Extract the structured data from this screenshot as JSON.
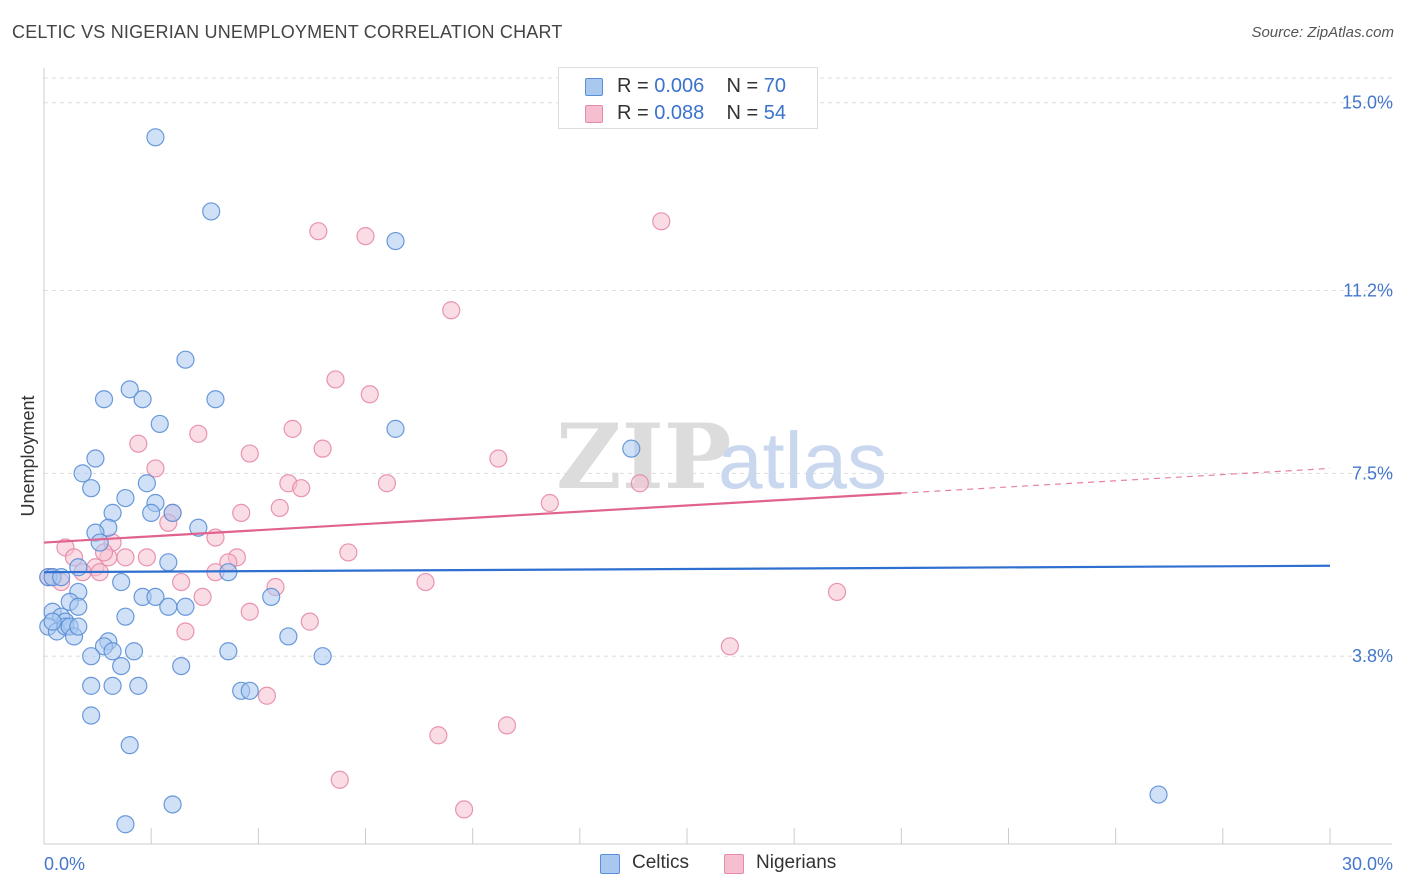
{
  "header": {
    "title": "CELTIC VS NIGERIAN UNEMPLOYMENT CORRELATION CHART",
    "source": "Source: ZipAtlas.com"
  },
  "legend": {
    "r_label": "R =",
    "n_label": "N =",
    "rows": [
      {
        "r": "0.006",
        "n": "70"
      },
      {
        "r": "0.088",
        "n": "54"
      }
    ]
  },
  "watermark": {
    "part1": "ZIP",
    "part2": "atlas"
  },
  "colors": {
    "celtics_fill": "#a9c8f0",
    "celtics_stroke": "#5b8fd6",
    "celtics_line": "#2f6fd0",
    "nigerians_fill": "#f6bfd0",
    "nigerians_stroke": "#e58aa8",
    "nigerians_line": "#e0628e",
    "tick_label": "#4477cc",
    "grid": "#dddddd"
  },
  "chart_data": {
    "type": "scatter",
    "title": "CELTIC VS NIGERIAN UNEMPLOYMENT CORRELATION CHART",
    "xlabel": "",
    "ylabel": "Unemployment",
    "xlim": [
      0,
      30
    ],
    "ylim": [
      0,
      15.5
    ],
    "x_tick_labels": [
      "0.0%",
      "30.0%"
    ],
    "y_ticks": [
      3.8,
      7.5,
      11.2,
      15.0
    ],
    "y_tick_labels": [
      "3.8%",
      "7.5%",
      "11.2%",
      "15.0%"
    ],
    "grid": true,
    "legend_position": "bottom",
    "series": [
      {
        "name": "Celtics",
        "r": 0.006,
        "n": 70,
        "trend": {
          "x0": 0,
          "y0": 5.5,
          "x1": 30,
          "y1": 5.63,
          "solid_until": 30
        },
        "points": [
          [
            2.6,
            14.3
          ],
          [
            3.9,
            12.8
          ],
          [
            8.2,
            12.2
          ],
          [
            3.3,
            9.8
          ],
          [
            2.0,
            9.2
          ],
          [
            1.4,
            9.0
          ],
          [
            2.3,
            9.0
          ],
          [
            4.0,
            9.0
          ],
          [
            2.7,
            8.5
          ],
          [
            8.2,
            8.4
          ],
          [
            13.7,
            8.0
          ],
          [
            1.2,
            7.8
          ],
          [
            0.9,
            7.5
          ],
          [
            2.4,
            7.3
          ],
          [
            1.1,
            7.2
          ],
          [
            1.9,
            7.0
          ],
          [
            2.6,
            6.9
          ],
          [
            1.6,
            6.7
          ],
          [
            2.5,
            6.7
          ],
          [
            3.0,
            6.7
          ],
          [
            3.6,
            6.4
          ],
          [
            1.5,
            6.4
          ],
          [
            1.2,
            6.3
          ],
          [
            1.3,
            6.1
          ],
          [
            0.1,
            5.4
          ],
          [
            0.2,
            5.4
          ],
          [
            0.8,
            5.6
          ],
          [
            1.8,
            5.3
          ],
          [
            2.9,
            5.7
          ],
          [
            4.3,
            5.5
          ],
          [
            0.8,
            5.1
          ],
          [
            2.3,
            5.0
          ],
          [
            2.6,
            5.0
          ],
          [
            5.3,
            5.0
          ],
          [
            0.6,
            4.9
          ],
          [
            0.8,
            4.8
          ],
          [
            2.9,
            4.8
          ],
          [
            3.3,
            4.8
          ],
          [
            0.2,
            4.7
          ],
          [
            1.9,
            4.6
          ],
          [
            0.4,
            4.6
          ],
          [
            0.5,
            4.5
          ],
          [
            0.1,
            4.4
          ],
          [
            0.3,
            4.3
          ],
          [
            0.5,
            4.4
          ],
          [
            0.6,
            4.4
          ],
          [
            0.7,
            4.2
          ],
          [
            5.7,
            4.2
          ],
          [
            1.5,
            4.1
          ],
          [
            1.4,
            4.0
          ],
          [
            1.6,
            3.9
          ],
          [
            2.1,
            3.9
          ],
          [
            4.3,
            3.9
          ],
          [
            1.1,
            3.8
          ],
          [
            6.5,
            3.8
          ],
          [
            1.8,
            3.6
          ],
          [
            3.2,
            3.6
          ],
          [
            1.1,
            3.2
          ],
          [
            1.6,
            3.2
          ],
          [
            2.2,
            3.2
          ],
          [
            4.6,
            3.1
          ],
          [
            4.8,
            3.1
          ],
          [
            1.1,
            2.6
          ],
          [
            2.0,
            2.0
          ],
          [
            3.0,
            0.8
          ],
          [
            1.9,
            0.4
          ],
          [
            26.0,
            1.0
          ],
          [
            0.2,
            4.5
          ],
          [
            0.8,
            4.4
          ],
          [
            0.4,
            5.4
          ]
        ]
      },
      {
        "name": "Nigerians",
        "r": 0.088,
        "n": 54,
        "trend": {
          "x0": 0,
          "y0": 6.1,
          "x1": 30,
          "y1": 7.6,
          "solid_until": 20
        },
        "points": [
          [
            14.4,
            12.6
          ],
          [
            6.4,
            12.4
          ],
          [
            7.5,
            12.3
          ],
          [
            9.5,
            10.8
          ],
          [
            6.8,
            9.4
          ],
          [
            7.6,
            9.1
          ],
          [
            3.6,
            8.3
          ],
          [
            5.8,
            8.4
          ],
          [
            2.2,
            8.1
          ],
          [
            4.8,
            7.9
          ],
          [
            6.5,
            8.0
          ],
          [
            10.6,
            7.8
          ],
          [
            2.6,
            7.6
          ],
          [
            5.7,
            7.3
          ],
          [
            6.0,
            7.2
          ],
          [
            8.0,
            7.3
          ],
          [
            13.9,
            7.3
          ],
          [
            11.8,
            6.9
          ],
          [
            4.6,
            6.7
          ],
          [
            5.5,
            6.8
          ],
          [
            3.0,
            6.7
          ],
          [
            2.9,
            6.5
          ],
          [
            4.0,
            6.2
          ],
          [
            1.6,
            6.1
          ],
          [
            0.5,
            6.0
          ],
          [
            0.7,
            5.8
          ],
          [
            1.5,
            5.8
          ],
          [
            1.9,
            5.8
          ],
          [
            2.4,
            5.8
          ],
          [
            4.5,
            5.8
          ],
          [
            4.3,
            5.7
          ],
          [
            1.2,
            5.6
          ],
          [
            1.3,
            5.5
          ],
          [
            0.9,
            5.5
          ],
          [
            4.0,
            5.5
          ],
          [
            7.1,
            5.9
          ],
          [
            0.2,
            5.4
          ],
          [
            0.4,
            5.3
          ],
          [
            8.9,
            5.3
          ],
          [
            3.2,
            5.3
          ],
          [
            5.4,
            5.2
          ],
          [
            18.5,
            5.1
          ],
          [
            3.7,
            5.0
          ],
          [
            4.8,
            4.7
          ],
          [
            6.2,
            4.5
          ],
          [
            3.3,
            4.3
          ],
          [
            16.0,
            4.0
          ],
          [
            5.2,
            3.0
          ],
          [
            10.8,
            2.4
          ],
          [
            9.2,
            2.2
          ],
          [
            6.9,
            1.3
          ],
          [
            9.8,
            0.7
          ],
          [
            0.1,
            5.4
          ],
          [
            1.4,
            5.9
          ]
        ]
      }
    ]
  }
}
